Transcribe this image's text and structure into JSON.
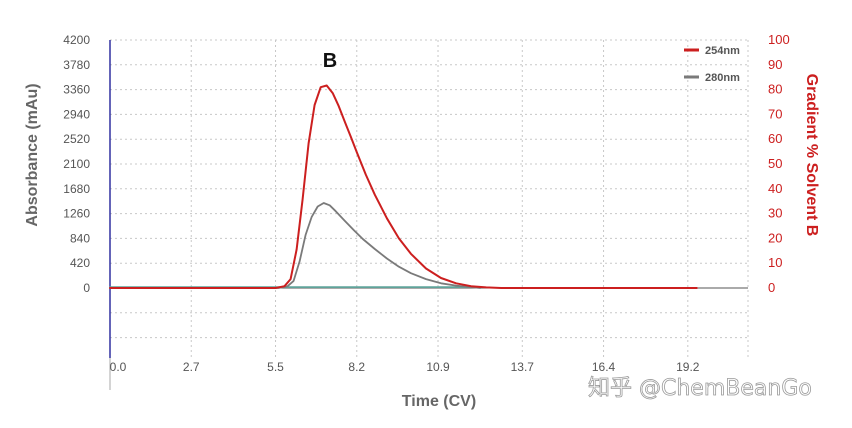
{
  "chart_data": {
    "type": "line",
    "annotation": "B",
    "xlabel": "Time (CV)",
    "ylabel": "Absorbance (mAu)",
    "y2label": "Gradient % Solvent B",
    "xlim": [
      0,
      21.2
    ],
    "ylim": [
      0,
      4200
    ],
    "y2lim": [
      0,
      100
    ],
    "x_ticks": [
      "0.0",
      "2.7",
      "5.5",
      "8.2",
      "10.9",
      "13.7",
      "16.4",
      "19.2"
    ],
    "y_ticks": [
      "4200",
      "3780",
      "3360",
      "2940",
      "2520",
      "2100",
      "1680",
      "1260",
      "840",
      "420",
      "0"
    ],
    "y2_ticks": [
      "100",
      "90",
      "80",
      "70",
      "60",
      "50",
      "40",
      "30",
      "20",
      "10",
      "0"
    ],
    "grid": true,
    "legend_position": "top-right",
    "series": [
      {
        "name": "254nm",
        "color": "#cc1f1f",
        "x": [
          0,
          5.5,
          5.8,
          6.0,
          6.2,
          6.4,
          6.6,
          6.8,
          7.0,
          7.2,
          7.4,
          7.6,
          7.8,
          8.0,
          8.2,
          8.5,
          8.8,
          9.2,
          9.6,
          10.0,
          10.5,
          11.0,
          11.5,
          12.0,
          12.5,
          13.0,
          19.5
        ],
        "values": [
          0,
          0,
          30,
          150,
          650,
          1500,
          2450,
          3100,
          3400,
          3430,
          3300,
          3080,
          2820,
          2560,
          2300,
          1920,
          1580,
          1180,
          840,
          580,
          330,
          170,
          80,
          30,
          10,
          0,
          0
        ]
      },
      {
        "name": "280nm",
        "color": "#7a7a7a",
        "x": [
          0,
          5.6,
          5.9,
          6.1,
          6.3,
          6.5,
          6.7,
          6.9,
          7.1,
          7.3,
          7.5,
          7.8,
          8.1,
          8.4,
          8.8,
          9.2,
          9.6,
          10.0,
          10.5,
          11.0,
          11.5,
          12.0,
          12.3
        ],
        "values": [
          0,
          0,
          30,
          120,
          450,
          900,
          1200,
          1380,
          1440,
          1400,
          1300,
          1140,
          980,
          830,
          660,
          500,
          360,
          250,
          150,
          80,
          40,
          15,
          0
        ]
      },
      {
        "name": "",
        "color": "#5fa39a",
        "x": [
          0,
          12.0
        ],
        "values": [
          15,
          15
        ]
      }
    ]
  },
  "watermark": "知乎 @ChemBeanGo"
}
